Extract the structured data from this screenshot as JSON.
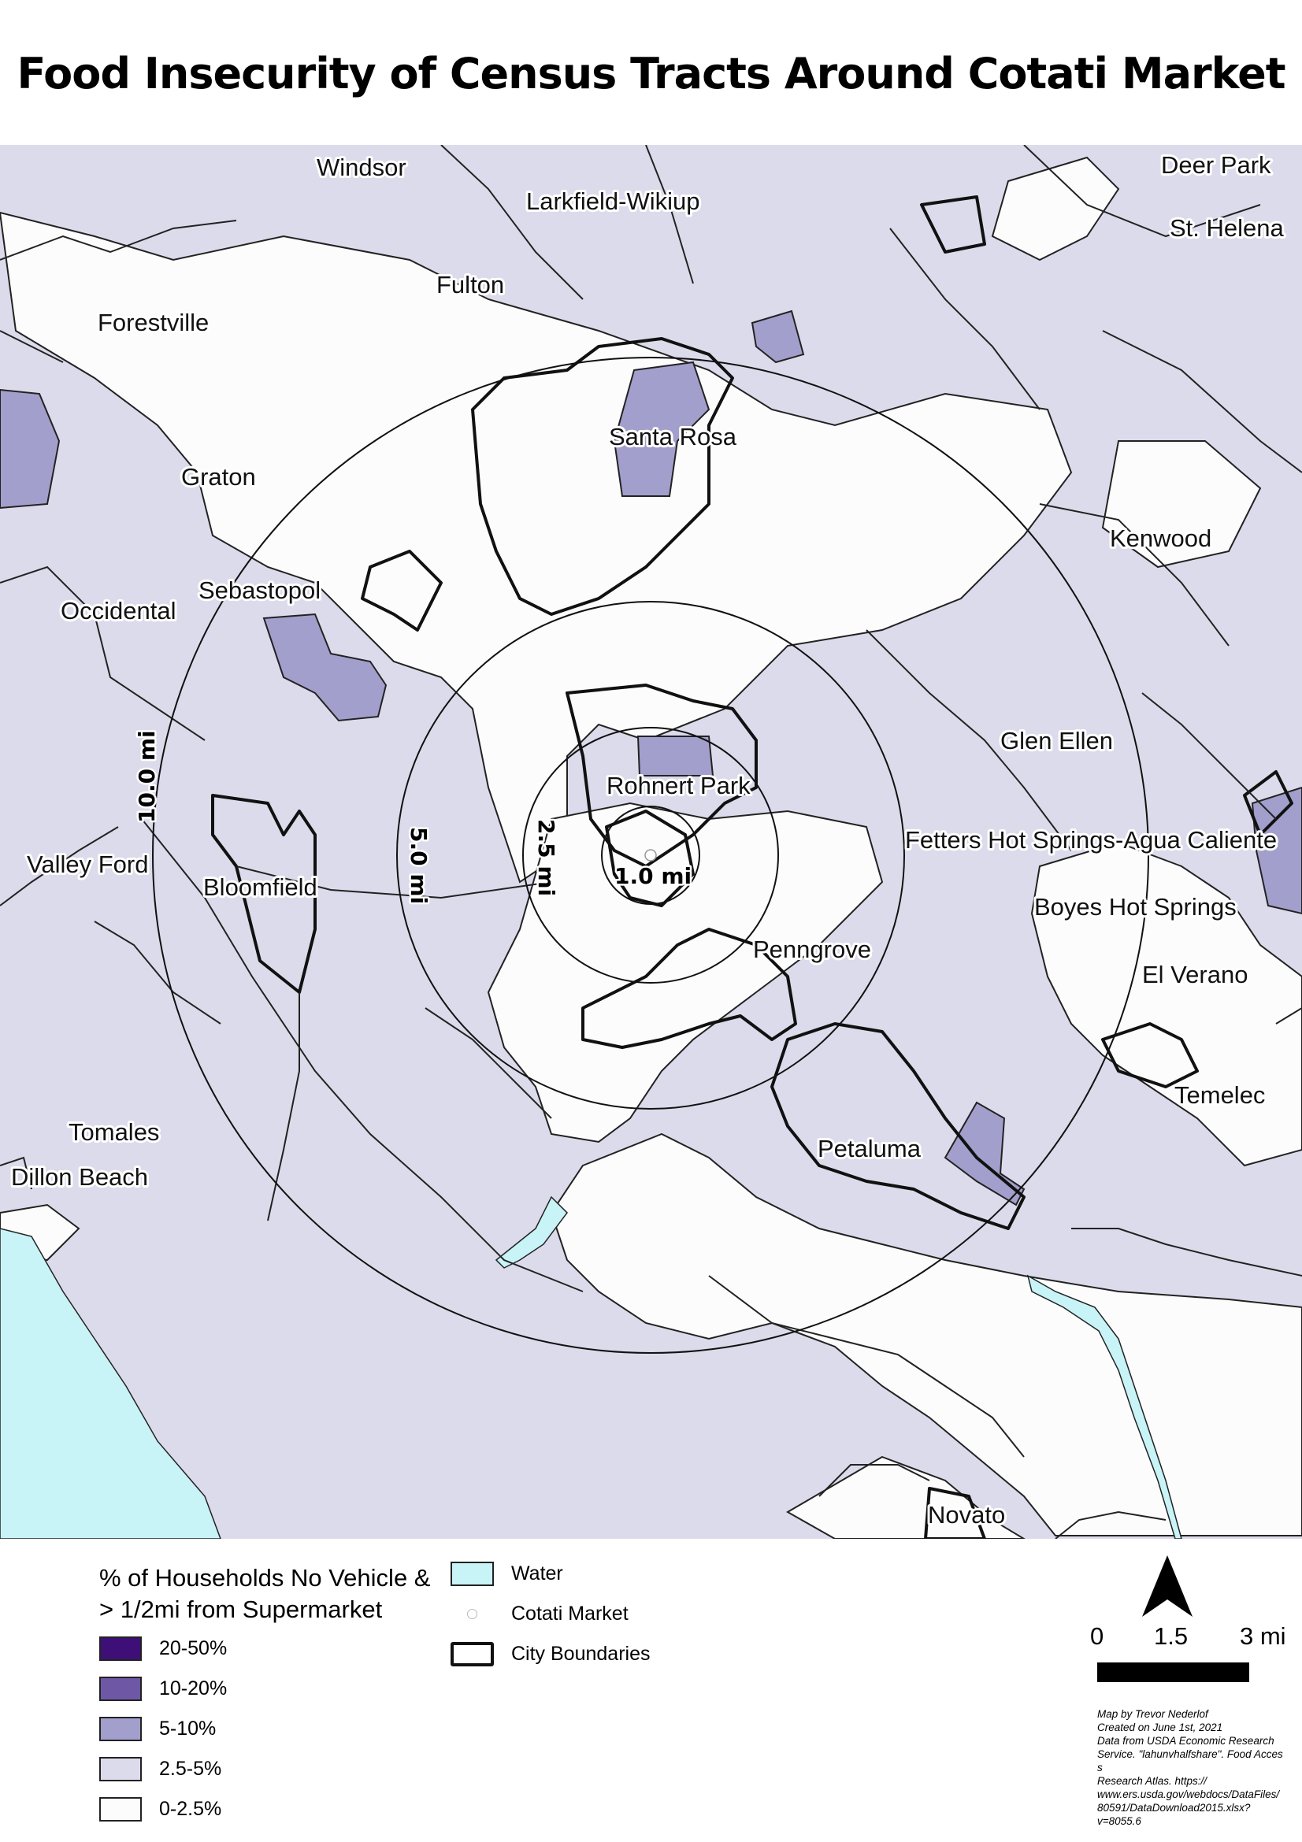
{
  "title": "Food Insecurity of Census Tracts Around Cotati Market",
  "colors": {
    "water": "#c8f3f7",
    "class_20_50": "#3f0f78",
    "class_10_20": "#6e58a6",
    "class_5_10": "#a29fcc",
    "class_2_5_5": "#dcdbeb",
    "class_0_2_5": "#fcfcfd"
  },
  "map": {
    "place_labels": {
      "windsor": "Windsor",
      "larkfield": "Larkfield-Wikiup",
      "deer_park": "Deer Park",
      "st_helena": "St. Helena",
      "fulton": "Fulton",
      "forestville": "Forestville",
      "santa_rosa": "Santa Rosa",
      "graton": "Graton",
      "kenwood": "Kenwood",
      "sebastopol": "Sebastopol",
      "occidental": "Occidental",
      "glen_ellen": "Glen Ellen",
      "rohnert_park": "Rohnert Park",
      "fetters": "Fetters Hot Springs-Agua Caliente",
      "valley_ford": "Valley Ford",
      "bloomfield": "Bloomfield",
      "boyes": "Boyes Hot Springs",
      "penngrove": "Penngrove",
      "el_verano": "El Verano",
      "temelec": "Temelec",
      "tomales": "Tomales",
      "petaluma": "Petaluma",
      "dillon_beach": "Dillon Beach",
      "novato": "Novato"
    },
    "ring_labels": {
      "r1": "1.0 mi",
      "r2": "2.5 mi",
      "r3": "5.0 mi",
      "r4": "10.0 mi"
    }
  },
  "legend": {
    "title_line1": "% of Households No Vehicle &",
    "title_line2": "> 1/2mi from Supermarket",
    "classes": [
      {
        "label": "20-50%",
        "color": "#3f0f78"
      },
      {
        "label": "10-20%",
        "color": "#6e58a6"
      },
      {
        "label": "5-10%",
        "color": "#a29fcc"
      },
      {
        "label": "2.5-5%",
        "color": "#dcdbeb"
      },
      {
        "label": "0-2.5%",
        "color": "#fcfcfd"
      }
    ],
    "water": "Water",
    "market": "Cotati Market",
    "city": "City Boundaries"
  },
  "scale": {
    "zero": "0",
    "mid": "1.5",
    "end": "3 mi"
  },
  "credits": [
    "Map by Trevor Nederlof",
    "Created on June 1st, 2021",
    "Data from USDA Economic Research",
    "Service. \"lahunvhalfshare\". Food Access",
    "Research Atlas. https://",
    "www.ers.usda.gov/webdocs/DataFiles/",
    "80591/DataDownload2015.xlsx?",
    "v=8055.6"
  ]
}
